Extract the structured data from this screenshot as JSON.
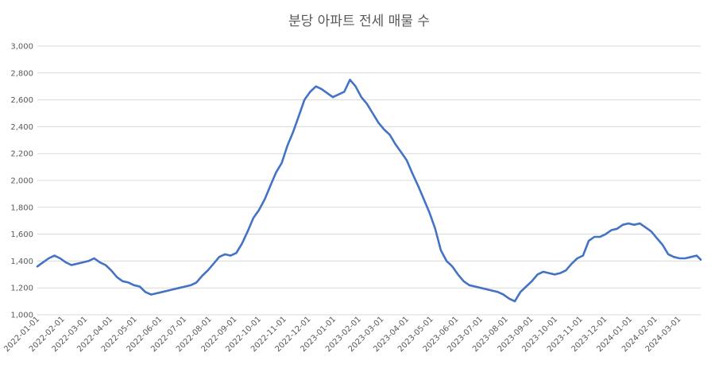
{
  "chart_data": {
    "type": "line",
    "title": "분당 아파트 전세 매물 수",
    "xlabel": "",
    "ylabel": "",
    "ylim": [
      1000,
      3000
    ],
    "yticks": [
      "1,000",
      "1,200",
      "1,400",
      "1,600",
      "1,800",
      "2,000",
      "2,200",
      "2,400",
      "2,600",
      "2,800",
      "3,000"
    ],
    "xlim": [
      "2022-01-01",
      "2024-03-28"
    ],
    "xticks": [
      "2022-01-01",
      "2022-02-01",
      "2022-03-01",
      "2022-04-01",
      "2022-05-01",
      "2022-06-01",
      "2022-07-01",
      "2022-08-01",
      "2022-09-01",
      "2022-10-01",
      "2022-11-01",
      "2022-12-01",
      "2023-01-01",
      "2023-02-01",
      "2023-03-01",
      "2023-04-01",
      "2023-05-01",
      "2023-06-01",
      "2023-07-01",
      "2023-08-01",
      "2023-09-01",
      "2023-10-01",
      "2023-11-01",
      "2023-12-01",
      "2024-01-01",
      "2024-02-01",
      "2024-03-01"
    ],
    "grid": true,
    "legend": "none",
    "color": "#4472c4",
    "series": [
      {
        "x": [
          "2022-01-01",
          "2022-01-08",
          "2022-01-15",
          "2022-01-22",
          "2022-01-29",
          "2022-02-05",
          "2022-02-12",
          "2022-02-19",
          "2022-02-26",
          "2022-03-05",
          "2022-03-12",
          "2022-03-19",
          "2022-03-26",
          "2022-04-02",
          "2022-04-09",
          "2022-04-16",
          "2022-04-23",
          "2022-04-30",
          "2022-05-07",
          "2022-05-14",
          "2022-05-21",
          "2022-05-28",
          "2022-06-04",
          "2022-06-11",
          "2022-06-18",
          "2022-06-25",
          "2022-07-02",
          "2022-07-09",
          "2022-07-16",
          "2022-07-23",
          "2022-07-30",
          "2022-08-06",
          "2022-08-13",
          "2022-08-20",
          "2022-08-27",
          "2022-09-03",
          "2022-09-10",
          "2022-09-17",
          "2022-09-24",
          "2022-10-01",
          "2022-10-08",
          "2022-10-15",
          "2022-10-22",
          "2022-10-29",
          "2022-11-05",
          "2022-11-12",
          "2022-11-19",
          "2022-11-26",
          "2022-12-03",
          "2022-12-10",
          "2022-12-17",
          "2022-12-24",
          "2022-12-31",
          "2023-01-07",
          "2023-01-14",
          "2023-01-21",
          "2023-01-28",
          "2023-02-04",
          "2023-02-11",
          "2023-02-18",
          "2023-02-25",
          "2023-03-04",
          "2023-03-11",
          "2023-03-18",
          "2023-03-25",
          "2023-04-01",
          "2023-04-08",
          "2023-04-15",
          "2023-04-22",
          "2023-04-29",
          "2023-05-06",
          "2023-05-13",
          "2023-05-20",
          "2023-05-27",
          "2023-06-03",
          "2023-06-10",
          "2023-06-17",
          "2023-06-24",
          "2023-07-01",
          "2023-07-08",
          "2023-07-15",
          "2023-07-22",
          "2023-07-29",
          "2023-08-05",
          "2023-08-12",
          "2023-08-19",
          "2023-08-26",
          "2023-09-02",
          "2023-09-09",
          "2023-09-16",
          "2023-09-23",
          "2023-09-30",
          "2023-10-07",
          "2023-10-14",
          "2023-10-21",
          "2023-10-28",
          "2023-11-04",
          "2023-11-11",
          "2023-11-18",
          "2023-11-25",
          "2023-12-02",
          "2023-12-09",
          "2023-12-16",
          "2023-12-23",
          "2023-12-30",
          "2024-01-06",
          "2024-01-13",
          "2024-01-20",
          "2024-01-27",
          "2024-02-03",
          "2024-02-10",
          "2024-02-17",
          "2024-02-24",
          "2024-03-02",
          "2024-03-09",
          "2024-03-16",
          "2024-03-23",
          "2024-03-28"
        ],
        "values": [
          1360,
          1390,
          1420,
          1440,
          1420,
          1390,
          1370,
          1380,
          1390,
          1400,
          1420,
          1390,
          1370,
          1330,
          1280,
          1250,
          1240,
          1220,
          1210,
          1170,
          1150,
          1160,
          1170,
          1180,
          1190,
          1200,
          1210,
          1220,
          1240,
          1290,
          1330,
          1380,
          1430,
          1450,
          1440,
          1460,
          1530,
          1620,
          1720,
          1780,
          1860,
          1960,
          2060,
          2130,
          2260,
          2360,
          2480,
          2600,
          2660,
          2700,
          2680,
          2650,
          2620,
          2640,
          2660,
          2750,
          2700,
          2620,
          2570,
          2500,
          2430,
          2380,
          2340,
          2270,
          2210,
          2150,
          2050,
          1960,
          1860,
          1760,
          1640,
          1480,
          1400,
          1360,
          1300,
          1250,
          1220,
          1210,
          1200,
          1190,
          1180,
          1170,
          1150,
          1120,
          1100,
          1170,
          1210,
          1250,
          1300,
          1320,
          1310,
          1300,
          1310,
          1330,
          1380,
          1420,
          1440,
          1550,
          1580,
          1580,
          1600,
          1630,
          1640,
          1670,
          1680,
          1670,
          1680,
          1650,
          1620,
          1570,
          1520,
          1450,
          1430,
          1420,
          1420,
          1430,
          1440,
          1410
        ]
      }
    ]
  }
}
